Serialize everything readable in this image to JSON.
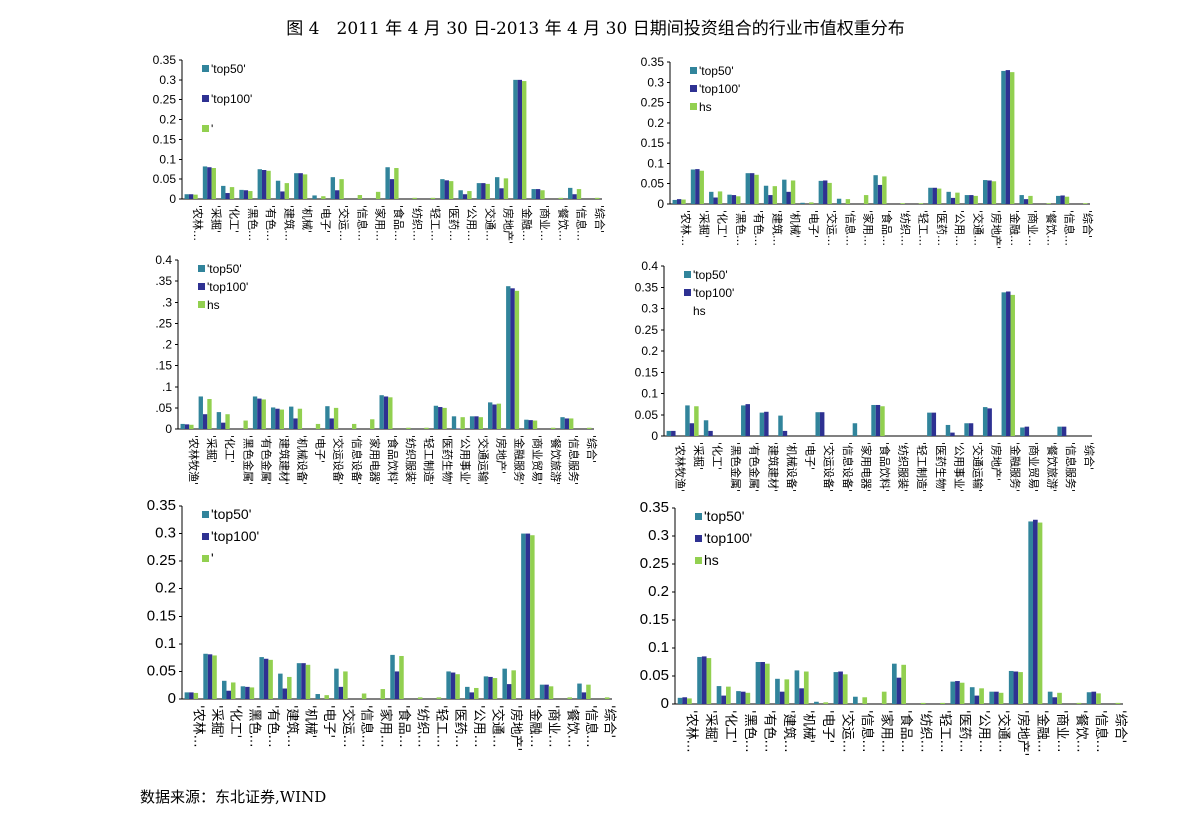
{
  "figure_title": "图 4　2011 年 4 月 30 日-2013 年 4 月 30 日期间投资组合的行业市值权重分布",
  "source_note": "数据来源：东北证券,WIND",
  "colors": {
    "top50": "#31849b",
    "top100": "#2e3192",
    "hs": "#92d050"
  },
  "chart_data": [
    {
      "type": "bar",
      "categories": [
        "'农林…",
        "'采掘'",
        "'化工'",
        "'黑色…",
        "'有色…",
        "'建筑…",
        "'机械'",
        "'电子'",
        "'交运…",
        "'信息…",
        "'家用…",
        "'食品…",
        "'纺织…",
        "'轻工…",
        "'医药…",
        "'公用…",
        "'交通…",
        "'房地产'",
        "'金融…",
        "'商业…",
        "'餐饮…",
        "'信息…",
        "'综合'"
      ],
      "series": [
        {
          "name": "'top50'",
          "key": "top50",
          "values": [
            0.012,
            0.082,
            0.033,
            0.023,
            0.075,
            0.046,
            0.065,
            0.009,
            0.055,
            0,
            0,
            0.08,
            0,
            0,
            0.05,
            0.022,
            0.04,
            0.055,
            0.3,
            0.025,
            0,
            0.028,
            0
          ]
        },
        {
          "name": "'top100'",
          "key": "top100",
          "values": [
            0.012,
            0.08,
            0.015,
            0.022,
            0.073,
            0.019,
            0.065,
            0,
            0.022,
            0,
            0,
            0.05,
            0,
            0,
            0.047,
            0.012,
            0.04,
            0.027,
            0.3,
            0.025,
            0,
            0.012,
            0
          ]
        },
        {
          "name": "",
          "key": "hs",
          "values": [
            0.011,
            0.078,
            0.03,
            0.02,
            0.071,
            0.04,
            0.062,
            0.007,
            0.05,
            0.01,
            0.018,
            0.078,
            0.003,
            0.003,
            0.045,
            0.02,
            0.038,
            0.052,
            0.297,
            0.022,
            0.003,
            0.025,
            0.003
          ]
        }
      ],
      "legend": [
        {
          "label": "'top50'",
          "key": "top50"
        },
        {
          "label": "'top100'",
          "key": "top100"
        },
        {
          "label": "'",
          "key": "hs"
        }
      ],
      "ylim": [
        0,
        0.35
      ],
      "ymax_tick": 0.35,
      "yticks": [
        "0",
        "0.05",
        "0.1",
        "0.15",
        "0.2",
        "0.25",
        "0.3",
        "0.35"
      ]
    },
    {
      "type": "bar",
      "categories": [
        "'农林…",
        "'采掘'",
        "'化工'",
        "'黑色…",
        "'有色…",
        "'建筑…",
        "'机械'",
        "'电子'",
        "'交运…",
        "'信息…",
        "'家用…",
        "'食品…",
        "'纺织…",
        "'轻工…",
        "'医药…",
        "'公用…",
        "'交通…",
        "'房地产'",
        "'金融…",
        "'商业…",
        "'餐饮…",
        "'信息…",
        "'综合'"
      ],
      "series": [
        {
          "name": "'top50'",
          "key": "top50",
          "values": [
            0.01,
            0.085,
            0.03,
            0.023,
            0.076,
            0.045,
            0.06,
            0.003,
            0.057,
            0.013,
            0,
            0.071,
            0,
            0,
            0.04,
            0.03,
            0.022,
            0.059,
            0.328,
            0.022,
            0,
            0.02,
            0
          ]
        },
        {
          "name": "'top100'",
          "key": "top100",
          "values": [
            0.012,
            0.086,
            0.016,
            0.022,
            0.076,
            0.022,
            0.03,
            0,
            0.058,
            0,
            0,
            0.047,
            0,
            0,
            0.04,
            0.015,
            0.022,
            0.058,
            0.33,
            0.012,
            0,
            0.021,
            0
          ]
        },
        {
          "name": "hs",
          "key": "hs",
          "values": [
            0.011,
            0.082,
            0.031,
            0.019,
            0.072,
            0.044,
            0.058,
            0.004,
            0.052,
            0.012,
            0.022,
            0.068,
            0.002,
            0.002,
            0.038,
            0.028,
            0.02,
            0.056,
            0.325,
            0.02,
            0.002,
            0.018,
            0.002
          ]
        }
      ],
      "legend": [
        {
          "label": "'top50'",
          "key": "top50"
        },
        {
          "label": "'top100'",
          "key": "top100"
        },
        {
          "label": "hs",
          "key": "hs"
        }
      ],
      "ylim": [
        0,
        0.35
      ],
      "ymax_tick": 0.35,
      "yticks": [
        "0",
        "0.05",
        "0.1",
        "0.15",
        "0.2",
        "0.25",
        "0.3",
        "0.35"
      ]
    },
    {
      "type": "bar",
      "categories": [
        "'农林牧渔'",
        "'采掘'",
        "'化工'",
        "'黑色金属'",
        "'有色金属'",
        "'建筑建材'",
        "'机械设备'",
        "'电子'",
        "'交运设备'",
        "'信息设备'",
        "'家用电器'",
        "'食品饮料'",
        "'纺织服装'",
        "'轻工制造'",
        "'医药生物'",
        "'公用事业'",
        "'交通运输'",
        "'房地产'",
        "'金融服务'",
        "'商业贸易'",
        "'餐饮旅游'",
        "'信息服务'",
        "'综合'"
      ],
      "series": [
        {
          "name": "'top50'",
          "key": "top50",
          "values": [
            0.012,
            0.077,
            0.04,
            0,
            0.077,
            0.051,
            0.053,
            0,
            0.054,
            0,
            0,
            0.08,
            0,
            0,
            0.055,
            0.03,
            0.03,
            0.063,
            0.338,
            0.022,
            0,
            0.028,
            0
          ]
        },
        {
          "name": "'top100'",
          "key": "top100",
          "values": [
            0.011,
            0.035,
            0.015,
            0,
            0.072,
            0.048,
            0.025,
            0,
            0.025,
            0,
            0,
            0.077,
            0,
            0,
            0.052,
            0.001,
            0.03,
            0.058,
            0.333,
            0.021,
            0,
            0.025,
            0
          ]
        },
        {
          "name": "hs",
          "key": "hs",
          "values": [
            0.01,
            0.071,
            0.035,
            0.02,
            0.07,
            0.046,
            0.048,
            0.012,
            0.05,
            0.012,
            0.023,
            0.075,
            0.003,
            0.003,
            0.05,
            0.028,
            0.028,
            0.06,
            0.327,
            0.02,
            0.003,
            0.025,
            0.003
          ]
        }
      ],
      "legend": [
        {
          "label": "'top50'",
          "key": "top50"
        },
        {
          "label": "'top100'",
          "key": "top100"
        },
        {
          "label": "hs",
          "key": "hs"
        }
      ],
      "ylim": [
        0,
        0.4
      ],
      "ymax_tick": 0.4,
      "yticks": [
        "0",
        "0.05",
        ".1",
        ".15",
        ".2",
        ".25",
        "0.3",
        "0.35",
        "0.4"
      ],
      "ytick_labels_visible": [
        "0",
        ".05",
        ".1",
        ".15",
        ".2",
        ".25",
        ".3",
        ".35",
        "0.4"
      ]
    },
    {
      "type": "bar",
      "categories": [
        "'农林牧渔'",
        "'采掘'",
        "'化工'",
        "'黑色金属'",
        "'有色金属'",
        "'建筑建材'",
        "'机械设备'",
        "'电子'",
        "'交运设备'",
        "'信息设备'",
        "'家用电器'",
        "'食品饮料'",
        "'纺织服装'",
        "'轻工制造'",
        "'医药生物'",
        "'公用事业'",
        "'交通运输'",
        "'房地产'",
        "'金融服务'",
        "'商业贸易'",
        "'餐饮旅游'",
        "'信息服务'",
        "'综合'"
      ],
      "series": [
        {
          "name": "'top50'",
          "key": "top50",
          "values": [
            0.012,
            0.072,
            0.037,
            0,
            0.072,
            0.055,
            0.048,
            0,
            0.056,
            0,
            0.03,
            0.073,
            0,
            0,
            0.055,
            0.026,
            0.03,
            0.068,
            0.338,
            0.02,
            0,
            0.022,
            0
          ]
        },
        {
          "name": "'top100'",
          "key": "top100",
          "values": [
            0.012,
            0.03,
            0.012,
            0,
            0.075,
            0.057,
            0.012,
            0,
            0.056,
            0,
            0,
            0.073,
            0,
            0,
            0.055,
            0.008,
            0.03,
            0.065,
            0.34,
            0.022,
            0,
            0.022,
            0
          ]
        },
        {
          "name": "",
          "key": "hs",
          "values": [
            0,
            0.07,
            0,
            0,
            0,
            0,
            0,
            0,
            0,
            0,
            0,
            0.07,
            0,
            0,
            0,
            0,
            0,
            0,
            0.332,
            0,
            0,
            0,
            0
          ]
        }
      ],
      "legend": [
        {
          "label": "'top50'",
          "key": "top50"
        },
        {
          "label": "'top100'",
          "key": "top100"
        },
        {
          "label": "hs",
          "key": "hs",
          "no_marker": true
        }
      ],
      "ylim": [
        0,
        0.4
      ],
      "ymax_tick": 0.4,
      "yticks": [
        "0",
        "0.05",
        "0.1",
        "0.15",
        "0.2",
        "0.25",
        "0.3",
        "0.35",
        "0.4"
      ]
    },
    {
      "type": "bar",
      "categories": [
        "'农林…",
        "'采掘'",
        "'化工'",
        "'黑色…",
        "'有色…",
        "'建筑…",
        "'机械'",
        "'电子'",
        "'交运…",
        "'信息…",
        "'家用…",
        "'食品…",
        "'纺织…",
        "'轻工…",
        "'医药…",
        "'公用…",
        "'交通…",
        "'房地产'",
        "'金融…",
        "'商业…",
        "'餐饮…",
        "'信息…",
        "'综合'"
      ],
      "series": [
        {
          "name": "'top50'",
          "key": "top50",
          "values": [
            0.012,
            0.082,
            0.033,
            0.023,
            0.076,
            0.046,
            0.065,
            0.009,
            0.055,
            0,
            0,
            0.08,
            0,
            0,
            0.05,
            0.022,
            0.041,
            0.055,
            0.3,
            0.026,
            0,
            0.028,
            0
          ]
        },
        {
          "name": "'top100'",
          "key": "top100",
          "values": [
            0.012,
            0.081,
            0.015,
            0.022,
            0.073,
            0.019,
            0.065,
            0,
            0.022,
            0,
            0,
            0.05,
            0,
            0,
            0.048,
            0.012,
            0.04,
            0.027,
            0.3,
            0.026,
            0,
            0.012,
            0
          ]
        },
        {
          "name": "",
          "key": "hs",
          "values": [
            0.011,
            0.079,
            0.03,
            0.021,
            0.071,
            0.04,
            0.062,
            0.007,
            0.05,
            0.01,
            0.018,
            0.078,
            0.003,
            0.003,
            0.045,
            0.02,
            0.038,
            0.052,
            0.297,
            0.023,
            0.003,
            0.026,
            0.003
          ]
        }
      ],
      "legend": [
        {
          "label": "'top50'",
          "key": "top50"
        },
        {
          "label": "'top100'",
          "key": "top100"
        },
        {
          "label": "'",
          "key": "hs"
        }
      ],
      "ylim": [
        0,
        0.35
      ],
      "ymax_tick": 0.35,
      "yticks": [
        "0",
        "0.05",
        "0.1",
        "0.15",
        "0.2",
        "0.25",
        "0.3",
        "0.35"
      ]
    },
    {
      "type": "bar",
      "categories": [
        "'农林…",
        "'采掘'",
        "'化工'",
        "'黑色…",
        "'有色…",
        "'建筑…",
        "'机械'",
        "'电子'",
        "'交运…",
        "'信息…",
        "'家用…",
        "'食品…",
        "'纺织…",
        "'轻工…",
        "'医药…",
        "'公用…",
        "'交通…",
        "'房地产'",
        "'金融…",
        "'商业…",
        "'餐饮…",
        "'信息…",
        "'综合'"
      ],
      "series": [
        {
          "name": "'top50'",
          "key": "top50",
          "values": [
            0.011,
            0.084,
            0.032,
            0.023,
            0.075,
            0.045,
            0.06,
            0.004,
            0.057,
            0.013,
            0,
            0.072,
            0,
            0,
            0.04,
            0.03,
            0.022,
            0.059,
            0.326,
            0.022,
            0,
            0.021,
            0
          ]
        },
        {
          "name": "'top100'",
          "key": "top100",
          "values": [
            0.012,
            0.085,
            0.015,
            0.022,
            0.075,
            0.022,
            0.028,
            0,
            0.058,
            0,
            0,
            0.047,
            0,
            0,
            0.041,
            0.015,
            0.022,
            0.058,
            0.329,
            0.012,
            0,
            0.022,
            0
          ]
        },
        {
          "name": "hs",
          "key": "hs",
          "values": [
            0.01,
            0.082,
            0.031,
            0.02,
            0.072,
            0.044,
            0.058,
            0.003,
            0.053,
            0.012,
            0.022,
            0.07,
            0.002,
            0.002,
            0.038,
            0.028,
            0.02,
            0.057,
            0.324,
            0.02,
            0.002,
            0.019,
            0.002
          ]
        }
      ],
      "legend": [
        {
          "label": "'top50'",
          "key": "top50"
        },
        {
          "label": "'top100'",
          "key": "top100"
        },
        {
          "label": "hs",
          "key": "hs"
        }
      ],
      "ylim": [
        0,
        0.35
      ],
      "ymax_tick": 0.35,
      "yticks": [
        "0",
        "0.05",
        "0.1",
        "0.15",
        "0.2",
        "0.25",
        "0.3",
        "0.35"
      ]
    }
  ]
}
